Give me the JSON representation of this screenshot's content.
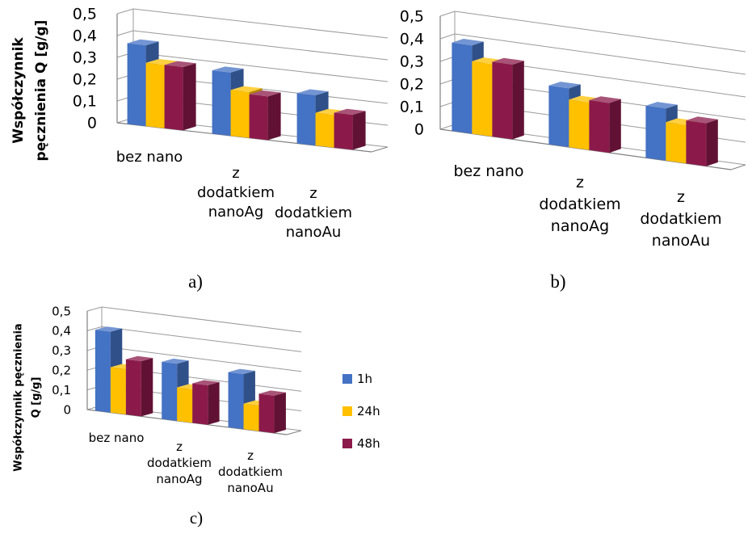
{
  "colors": {
    "1h": "#4472c4",
    "24h": "#ffc000",
    "48h": "#8b1a4a",
    "axis": "#808080",
    "text": "#000000"
  },
  "chart_data": [
    {
      "type": "bar",
      "panel_label": "a)",
      "ylabel_lines": [
        "Współczynnik",
        "pęcznienia Q [g/g]"
      ],
      "categories": [
        "bez nano",
        "z dodatkiem nanoAg",
        "z dodatkiem nanoAu"
      ],
      "category_lines": [
        [
          "bez nano"
        ],
        [
          "z",
          "dodatkiem",
          "nanoAg"
        ],
        [
          "z",
          "dodatkiem",
          "nanoAu"
        ]
      ],
      "y_ticks": [
        "0",
        "0,1",
        "0,2",
        "0,3",
        "0,4",
        "0,5"
      ],
      "ylim": [
        0,
        0.5
      ],
      "series": [
        {
          "name": "1h",
          "values": [
            0.37,
            0.29,
            0.23
          ]
        },
        {
          "name": "24h",
          "values": [
            0.29,
            0.21,
            0.15
          ]
        },
        {
          "name": "48h",
          "values": [
            0.29,
            0.2,
            0.16
          ]
        }
      ],
      "grid": true,
      "legend": "none"
    },
    {
      "type": "bar",
      "panel_label": "b)",
      "ylabel_lines": [],
      "categories": [
        "bez nano",
        "z dodatkiem nanoAg",
        "z dodatkiem nanoAu"
      ],
      "category_lines": [
        [
          "bez nano"
        ],
        [
          "z",
          "dodatkiem",
          "nanoAg"
        ],
        [
          "z",
          "dodatkiem",
          "nanoAu"
        ]
      ],
      "y_ticks": [
        "0",
        "0,1",
        "0,2",
        "0,3",
        "0,4",
        "0,5"
      ],
      "ylim": [
        0,
        0.5
      ],
      "series": [
        {
          "name": "1h",
          "values": [
            0.39,
            0.26,
            0.23
          ]
        },
        {
          "name": "24h",
          "values": [
            0.32,
            0.21,
            0.17
          ]
        },
        {
          "name": "48h",
          "values": [
            0.33,
            0.22,
            0.19
          ]
        }
      ],
      "grid": true,
      "legend": "none"
    },
    {
      "type": "bar",
      "panel_label": "c)",
      "ylabel_lines": [
        "Współczynnik pęcznienia",
        "Q [g/g]"
      ],
      "categories": [
        "bez nano",
        "z dodatkiem nanoAg",
        "z dodatkiem nanoAu"
      ],
      "category_lines": [
        [
          "bez nano"
        ],
        [
          "z",
          "dodatkiem",
          "nanoAg"
        ],
        [
          "z",
          "dodatkiem",
          "nanoAu"
        ]
      ],
      "y_ticks": [
        "0",
        "0,1",
        "0,2",
        "0,3",
        "0,4",
        "0,5"
      ],
      "ylim": [
        0,
        0.5
      ],
      "series": [
        {
          "name": "1h",
          "values": [
            0.41,
            0.29,
            0.28
          ]
        },
        {
          "name": "24h",
          "values": [
            0.23,
            0.17,
            0.13
          ]
        },
        {
          "name": "48h",
          "values": [
            0.28,
            0.2,
            0.19
          ]
        }
      ],
      "grid": true,
      "legend": "right"
    }
  ]
}
